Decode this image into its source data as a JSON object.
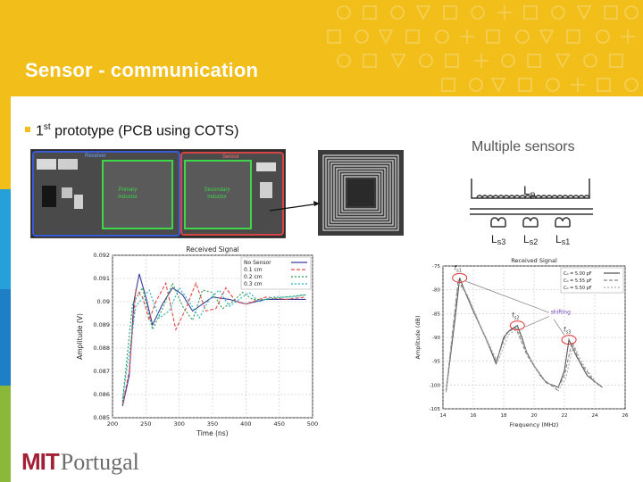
{
  "header": {
    "title": "Sensor - communication"
  },
  "bullet": {
    "sup": "st",
    "before": "1",
    "after": " prototype (PCB using COTS)"
  },
  "pcb_photo": {
    "receiver_label": "Receiver",
    "sensor_label": "Sensor",
    "primary_label": "Primary\nInductor",
    "secondary_label": "Secondary\nInductor"
  },
  "sensors": {
    "title": "Multiple sensors",
    "lp_label": "L",
    "lp_sub": "p",
    "s3": "s3",
    "s2": "s2",
    "s1": "s1",
    "l_prefix": "L"
  },
  "chart_data": [
    {
      "type": "line",
      "title": "Received Signal",
      "xlabel": "Time (ns)",
      "ylabel": "Amplitude (V)",
      "xlim": [
        200,
        500
      ],
      "ylim": [
        0.085,
        0.092
      ],
      "xticks": [
        "200",
        "250",
        "300",
        "350",
        "400",
        "450",
        "500"
      ],
      "yticks": [
        "0.085",
        "0.086",
        "0.087",
        "0.088",
        "0.089",
        "0.09",
        "0.091",
        "0.092"
      ],
      "grid": true,
      "legend_position": "top-right",
      "series": [
        {
          "name": "No Sensor",
          "color": "#3a3a9a",
          "x": [
            215,
            225,
            232,
            240,
            250,
            260,
            275,
            290,
            305,
            320,
            335,
            350,
            375,
            400,
            430,
            460,
            490
          ],
          "values": [
            0.0855,
            0.0868,
            0.09,
            0.0912,
            0.0902,
            0.089,
            0.0899,
            0.0906,
            0.0903,
            0.0896,
            0.0899,
            0.0902,
            0.0901,
            0.0899,
            0.0901,
            0.0901,
            0.0901
          ]
        },
        {
          "name": "0.1 cm",
          "color": "#e24b4b",
          "x": [
            215,
            225,
            235,
            245,
            255,
            265,
            280,
            295,
            310,
            325,
            340,
            355,
            370,
            385,
            400,
            430,
            460,
            490
          ],
          "values": [
            0.0856,
            0.087,
            0.0905,
            0.0902,
            0.0892,
            0.09,
            0.0908,
            0.0888,
            0.0897,
            0.0908,
            0.0896,
            0.0897,
            0.0906,
            0.09,
            0.0899,
            0.0902,
            0.0901,
            0.0902
          ]
        },
        {
          "name": "0.2 cm",
          "color": "#2a9a4a",
          "x": [
            215,
            230,
            245,
            260,
            275,
            290,
            305,
            320,
            335,
            350,
            365,
            380,
            395,
            410,
            430,
            460,
            490
          ],
          "values": [
            0.0857,
            0.0899,
            0.0906,
            0.0888,
            0.0897,
            0.0908,
            0.0898,
            0.0892,
            0.0905,
            0.0904,
            0.0897,
            0.09,
            0.0904,
            0.0901,
            0.0901,
            0.0902,
            0.0903
          ]
        },
        {
          "name": "0.3 cm",
          "color": "#22b0c8",
          "x": [
            215,
            235,
            255,
            270,
            285,
            300,
            315,
            330,
            345,
            360,
            375,
            390,
            405,
            420,
            440,
            470,
            490
          ],
          "values": [
            0.0858,
            0.0898,
            0.0905,
            0.0893,
            0.0896,
            0.0906,
            0.09,
            0.0893,
            0.0901,
            0.0905,
            0.0898,
            0.0901,
            0.0904,
            0.09,
            0.0902,
            0.0902,
            0.0903
          ]
        }
      ]
    },
    {
      "type": "line",
      "title": "Received Signal",
      "xlabel": "Frequency (MHz)",
      "ylabel": "Amplitude (dB)",
      "xlim": [
        14,
        26
      ],
      "ylim": [
        -105,
        -75
      ],
      "xticks": [
        "14",
        "16",
        "18",
        "20",
        "22",
        "24",
        "26"
      ],
      "yticks": [
        "-75",
        "-80",
        "-85",
        "-90",
        "-95",
        "-100",
        "-105"
      ],
      "grid": true,
      "legend_position": "top-right",
      "annotations": {
        "shifting": "shifting",
        "f1": "f",
        "f1_sub": "s1",
        "f2": "f",
        "f2_sub": "s2",
        "f3": "f",
        "f3_sub": "s3"
      },
      "series": [
        {
          "name": "C₀ = 5.00 pF",
          "color": "#555555",
          "x": [
            14.2,
            14.8,
            15.1,
            15.4,
            16.0,
            16.8,
            17.5,
            18.0,
            18.4,
            18.9,
            19.2,
            19.5,
            20.0,
            20.8,
            21.6,
            22.0,
            22.3,
            22.8,
            23.5,
            24.5
          ],
          "values": [
            -101.5,
            -86.0,
            -77.5,
            -80.0,
            -84.5,
            -90.0,
            -95.5,
            -90.0,
            -88.5,
            -87.5,
            -90.0,
            -93.0,
            -96.0,
            -99.5,
            -100.5,
            -97.0,
            -90.5,
            -94.0,
            -98.0,
            -100.5
          ]
        },
        {
          "name": "C₀ = 5.55 pF",
          "color": "#888888",
          "x": [
            14.2,
            15.0,
            15.5,
            16.5,
            17.5,
            18.2,
            18.8,
            19.5,
            20.5,
            21.5,
            22.0,
            22.5,
            23.0,
            24.0
          ],
          "values": [
            -101.5,
            -78.0,
            -80.5,
            -88.0,
            -95.0,
            -89.0,
            -88.0,
            -93.5,
            -98.5,
            -101.0,
            -98.0,
            -91.0,
            -95.0,
            -99.5
          ]
        },
        {
          "name": "C₀ = 5.50 pF",
          "color": "#aaaaaa",
          "x": [
            14.2,
            15.0,
            15.6,
            16.6,
            17.6,
            18.3,
            18.9,
            19.6,
            20.6,
            21.6,
            22.1,
            22.6,
            23.2,
            24.2
          ],
          "values": [
            -101.5,
            -78.5,
            -81.0,
            -88.5,
            -95.2,
            -89.5,
            -88.2,
            -93.8,
            -98.8,
            -101.2,
            -98.5,
            -91.5,
            -95.5,
            -100.0
          ]
        }
      ]
    }
  ],
  "logo": {
    "mit": "MIT",
    "portugal": "Portugal"
  },
  "colors": {
    "header": "#f2be1a",
    "stripe_1": "#f2be1a",
    "stripe_2": "#25a0d8",
    "stripe_3": "#1f7fc6",
    "stripe_4": "#8cb83a",
    "mit_red": "#a31f34"
  }
}
